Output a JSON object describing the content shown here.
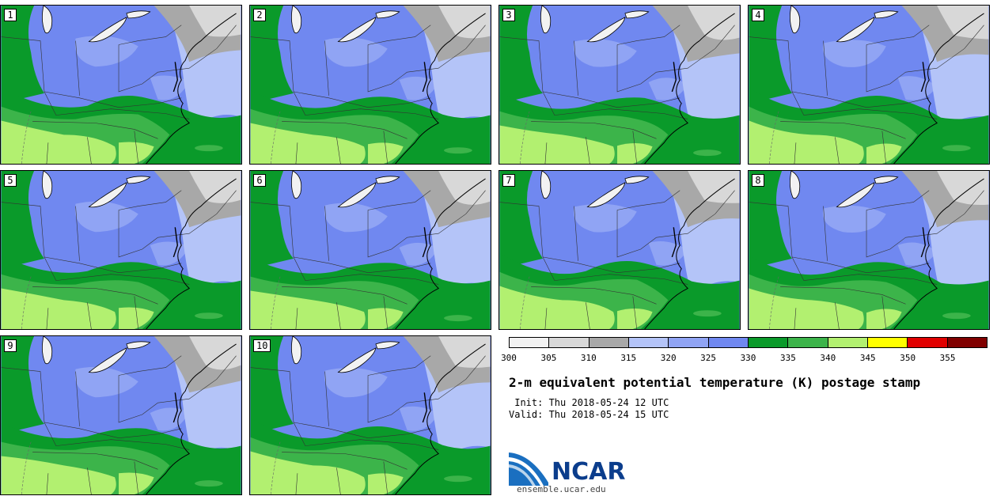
{
  "panels": [
    {
      "label": "1"
    },
    {
      "label": "2"
    },
    {
      "label": "3"
    },
    {
      "label": "4"
    },
    {
      "label": "5"
    },
    {
      "label": "6"
    },
    {
      "label": "7"
    },
    {
      "label": "8"
    },
    {
      "label": "9"
    },
    {
      "label": "10"
    }
  ],
  "colorbar": {
    "ticks": [
      "300",
      "305",
      "310",
      "315",
      "320",
      "325",
      "330",
      "335",
      "340",
      "345",
      "350",
      "355"
    ],
    "colors": [
      "#f2f2f2",
      "#d8d8d8",
      "#a8a8a8",
      "#b4c4f8",
      "#90a4f4",
      "#7088f0",
      "#0a9a2a",
      "#3cb44a",
      "#b2f070",
      "#ffff00",
      "#e00000",
      "#800000"
    ]
  },
  "title": "2-m equivalent potential temperature (K) postage stamp",
  "init": " Init: Thu 2018-05-24 12 UTC",
  "valid": "Valid: Thu 2018-05-24 15 UTC",
  "logo": {
    "text": "NCAR",
    "url": "ensemble.ucar.edu"
  },
  "map_colors": {
    "ocean": "#0a9a2a",
    "green_mid": "#3cb44a",
    "green_light": "#b2f070",
    "blue": "#7088f0",
    "blue_light": "#b4c4f8",
    "blue_mid": "#90a4f4",
    "gray": "#a8a8a8",
    "gray_light": "#d8d8d8",
    "white": "#f2f2f2"
  }
}
